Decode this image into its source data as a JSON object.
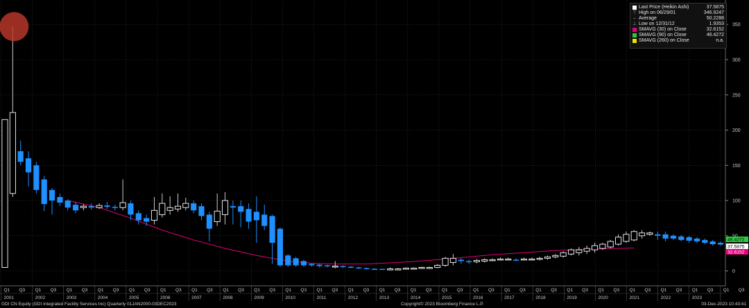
{
  "legend": {
    "items": [
      {
        "label": "Last Price (Heikin Ashi)",
        "value": "37.5875",
        "color": "#ffffff",
        "type": "box"
      },
      {
        "label": "High on 06/29/01",
        "value": "346.9247",
        "color": "#aaaaaa",
        "type": "high"
      },
      {
        "label": "Average",
        "value": "50.2288",
        "color": "#aaaaaa",
        "type": "avg"
      },
      {
        "label": "Low on 12/31/12",
        "value": "1.9353",
        "color": "#aaaaaa",
        "type": "low"
      },
      {
        "label": "SMAVG (30)  on Close",
        "value": "32.6152",
        "color": "#e4007c",
        "type": "box"
      },
      {
        "label": "SMAVG (90)  on Close",
        "value": "46.4272",
        "color": "#2ecc40",
        "type": "box"
      },
      {
        "label": "SMAVG (260)  on Close",
        "value": "n.a.",
        "color": "#f0e000",
        "type": "box"
      }
    ]
  },
  "footer": {
    "left": "GDI CN Equity (GDI Integrated Facility Services Inc)  Quarterly 01JAN2000-03DEC2023",
    "center": "Copyright© 2023 Bloomberg Finance L.P.",
    "right": "03-Dec-2023 10:43:41"
  },
  "price_tags": [
    {
      "label": "46.4272",
      "bg": "#2ecc40",
      "color": "#000000",
      "value": 46.4272
    },
    {
      "label": "37.5875",
      "bg": "#ffffff",
      "color": "#000000",
      "value": 37.5875
    },
    {
      "label": "32.6152",
      "bg": "#e4007c",
      "color": "#ffffff",
      "value": 32.6152
    }
  ],
  "chart_data": {
    "type": "candlestick",
    "title": "",
    "ylim": [
      -25,
      365
    ],
    "yticks": [
      0,
      50,
      100,
      150,
      200,
      250,
      300,
      350
    ],
    "x_quarters": [
      "Q1",
      "Q3"
    ],
    "x_years": [
      "2001",
      "2002",
      "2003",
      "2004",
      "2005",
      "2006",
      "2007",
      "2008",
      "2009",
      "2010",
      "2011",
      "2012",
      "2013",
      "2014",
      "2015",
      "2016",
      "2017",
      "2018",
      "2019",
      "2020",
      "2021",
      "2022",
      "2023"
    ],
    "high_marker": {
      "label": "High on 06/29/01",
      "value": 346.9247,
      "candle_index": 1,
      "color": "#c0392b"
    },
    "candles": [
      {
        "open": 5,
        "close": 215,
        "high": 215,
        "low": 5,
        "dir": "up"
      },
      {
        "open": 110,
        "close": 225,
        "high": 347,
        "low": 105,
        "dir": "up"
      },
      {
        "open": 170,
        "close": 155,
        "high": 185,
        "low": 150,
        "dir": "down"
      },
      {
        "open": 160,
        "close": 140,
        "high": 170,
        "low": 120,
        "dir": "down"
      },
      {
        "open": 150,
        "close": 115,
        "high": 155,
        "low": 110,
        "dir": "down"
      },
      {
        "open": 130,
        "close": 95,
        "high": 135,
        "low": 85,
        "dir": "down"
      },
      {
        "open": 115,
        "close": 100,
        "high": 118,
        "low": 80,
        "dir": "down"
      },
      {
        "open": 105,
        "close": 97,
        "high": 110,
        "low": 92,
        "dir": "down"
      },
      {
        "open": 100,
        "close": 90,
        "high": 102,
        "low": 86,
        "dir": "down"
      },
      {
        "open": 94,
        "close": 86,
        "high": 98,
        "low": 82,
        "dir": "down"
      },
      {
        "open": 90,
        "close": 92,
        "high": 95,
        "low": 86,
        "dir": "up"
      },
      {
        "open": 92,
        "close": 90,
        "high": 96,
        "low": 87,
        "dir": "down"
      },
      {
        "open": 90,
        "close": 93,
        "high": 96,
        "low": 88,
        "dir": "up"
      },
      {
        "open": 93,
        "close": 91,
        "high": 98,
        "low": 88,
        "dir": "down"
      },
      {
        "open": 91,
        "close": 90,
        "high": 94,
        "low": 86,
        "dir": "down"
      },
      {
        "open": 90,
        "close": 97,
        "high": 130,
        "low": 86,
        "dir": "up"
      },
      {
        "open": 96,
        "close": 80,
        "high": 100,
        "low": 72,
        "dir": "down"
      },
      {
        "open": 82,
        "close": 72,
        "high": 86,
        "low": 66,
        "dir": "down"
      },
      {
        "open": 75,
        "close": 70,
        "high": 80,
        "low": 64,
        "dir": "down"
      },
      {
        "open": 72,
        "close": 86,
        "high": 105,
        "low": 66,
        "dir": "up"
      },
      {
        "open": 80,
        "close": 96,
        "high": 110,
        "low": 76,
        "dir": "up"
      },
      {
        "open": 86,
        "close": 90,
        "high": 106,
        "low": 80,
        "dir": "up"
      },
      {
        "open": 88,
        "close": 92,
        "high": 110,
        "low": 84,
        "dir": "up"
      },
      {
        "open": 90,
        "close": 96,
        "high": 104,
        "low": 86,
        "dir": "up"
      },
      {
        "open": 96,
        "close": 86,
        "high": 100,
        "low": 82,
        "dir": "down"
      },
      {
        "open": 92,
        "close": 78,
        "high": 96,
        "low": 72,
        "dir": "down"
      },
      {
        "open": 80,
        "close": 60,
        "high": 84,
        "low": 42,
        "dir": "down"
      },
      {
        "open": 70,
        "close": 85,
        "high": 110,
        "low": 64,
        "dir": "up"
      },
      {
        "open": 80,
        "close": 100,
        "high": 112,
        "low": 66,
        "dir": "up"
      },
      {
        "open": 92,
        "close": 90,
        "high": 100,
        "low": 66,
        "dir": "down"
      },
      {
        "open": 92,
        "close": 84,
        "high": 100,
        "low": 62,
        "dir": "down"
      },
      {
        "open": 88,
        "close": 70,
        "high": 96,
        "low": 60,
        "dir": "down"
      },
      {
        "open": 84,
        "close": 72,
        "high": 106,
        "low": 40,
        "dir": "down"
      },
      {
        "open": 80,
        "close": 64,
        "high": 94,
        "low": 58,
        "dir": "down"
      },
      {
        "open": 78,
        "close": 40,
        "high": 80,
        "low": 10,
        "dir": "down"
      },
      {
        "open": 60,
        "close": 8,
        "high": 62,
        "low": 6,
        "dir": "down"
      },
      {
        "open": 22,
        "close": 8,
        "high": 24,
        "low": 6,
        "dir": "down"
      },
      {
        "open": 18,
        "close": 8,
        "high": 20,
        "low": 6,
        "dir": "down"
      },
      {
        "open": 14,
        "close": 8,
        "high": 16,
        "low": 6,
        "dir": "down"
      },
      {
        "open": 10,
        "close": 8,
        "high": 11,
        "low": 6,
        "dir": "down"
      },
      {
        "open": 9,
        "close": 7,
        "high": 10,
        "low": 5,
        "dir": "down"
      },
      {
        "open": 8,
        "close": 7,
        "high": 9,
        "low": 5,
        "dir": "down"
      },
      {
        "open": 6,
        "close": 7,
        "high": 14,
        "low": 4,
        "dir": "up"
      },
      {
        "open": 7,
        "close": 6,
        "high": 8,
        "low": 4,
        "dir": "down"
      },
      {
        "open": 6,
        "close": 5,
        "high": 7,
        "low": 4,
        "dir": "down"
      },
      {
        "open": 5,
        "close": 4,
        "high": 6,
        "low": 3,
        "dir": "down"
      },
      {
        "open": 4,
        "close": 3,
        "high": 5,
        "low": 2,
        "dir": "down"
      },
      {
        "open": 3,
        "close": 3,
        "high": 4,
        "low": 2,
        "dir": "down"
      },
      {
        "open": 3,
        "close": 2,
        "high": 3,
        "low": 1.9,
        "dir": "down"
      },
      {
        "open": 2,
        "close": 3,
        "high": 5,
        "low": 2,
        "dir": "up"
      },
      {
        "open": 3,
        "close": 3,
        "high": 4,
        "low": 2,
        "dir": "up"
      },
      {
        "open": 3,
        "close": 4,
        "high": 5,
        "low": 2,
        "dir": "up"
      },
      {
        "open": 4,
        "close": 4,
        "high": 5,
        "low": 3,
        "dir": "up"
      },
      {
        "open": 4,
        "close": 5,
        "high": 6,
        "low": 3,
        "dir": "up"
      },
      {
        "open": 4,
        "close": 5,
        "high": 6,
        "low": 3,
        "dir": "up"
      },
      {
        "open": 5,
        "close": 8,
        "high": 10,
        "low": 4,
        "dir": "up"
      },
      {
        "open": 8,
        "close": 18,
        "high": 20,
        "low": 6,
        "dir": "up"
      },
      {
        "open": 12,
        "close": 18,
        "high": 24,
        "low": 8,
        "dir": "up"
      },
      {
        "open": 16,
        "close": 14,
        "high": 18,
        "low": 10,
        "dir": "down"
      },
      {
        "open": 14,
        "close": 13,
        "high": 16,
        "low": 10,
        "dir": "down"
      },
      {
        "open": 13,
        "close": 15,
        "high": 17,
        "low": 11,
        "dir": "up"
      },
      {
        "open": 14,
        "close": 16,
        "high": 18,
        "low": 12,
        "dir": "up"
      },
      {
        "open": 16,
        "close": 16,
        "high": 18,
        "low": 14,
        "dir": "up"
      },
      {
        "open": 16,
        "close": 17,
        "high": 19,
        "low": 15,
        "dir": "up"
      },
      {
        "open": 17,
        "close": 17,
        "high": 19,
        "low": 15,
        "dir": "up"
      },
      {
        "open": 16,
        "close": 16,
        "high": 18,
        "low": 14,
        "dir": "down"
      },
      {
        "open": 16,
        "close": 17,
        "high": 19,
        "low": 15,
        "dir": "up"
      },
      {
        "open": 16,
        "close": 17,
        "high": 19,
        "low": 15,
        "dir": "up"
      },
      {
        "open": 17,
        "close": 18,
        "high": 20,
        "low": 15,
        "dir": "up"
      },
      {
        "open": 18,
        "close": 20,
        "high": 22,
        "low": 16,
        "dir": "up"
      },
      {
        "open": 20,
        "close": 22,
        "high": 24,
        "low": 18,
        "dir": "up"
      },
      {
        "open": 21,
        "close": 26,
        "high": 28,
        "low": 19,
        "dir": "up"
      },
      {
        "open": 24,
        "close": 30,
        "high": 32,
        "low": 22,
        "dir": "up"
      },
      {
        "open": 26,
        "close": 30,
        "high": 34,
        "low": 22,
        "dir": "up"
      },
      {
        "open": 28,
        "close": 32,
        "high": 36,
        "low": 24,
        "dir": "up"
      },
      {
        "open": 30,
        "close": 36,
        "high": 40,
        "low": 26,
        "dir": "up"
      },
      {
        "open": 32,
        "close": 38,
        "high": 40,
        "low": 30,
        "dir": "up"
      },
      {
        "open": 34,
        "close": 42,
        "high": 44,
        "low": 32,
        "dir": "up"
      },
      {
        "open": 38,
        "close": 48,
        "high": 52,
        "low": 36,
        "dir": "up"
      },
      {
        "open": 42,
        "close": 52,
        "high": 56,
        "low": 40,
        "dir": "up"
      },
      {
        "open": 44,
        "close": 56,
        "high": 58,
        "low": 42,
        "dir": "up"
      },
      {
        "open": 50,
        "close": 54,
        "high": 58,
        "low": 46,
        "dir": "up"
      },
      {
        "open": 52,
        "close": 54,
        "high": 56,
        "low": 50,
        "dir": "up"
      },
      {
        "open": 52,
        "close": 50,
        "high": 56,
        "low": 44,
        "dir": "down"
      },
      {
        "open": 52,
        "close": 46,
        "high": 56,
        "low": 42,
        "dir": "down"
      },
      {
        "open": 50,
        "close": 46,
        "high": 52,
        "low": 44,
        "dir": "down"
      },
      {
        "open": 49,
        "close": 44,
        "high": 51,
        "low": 42,
        "dir": "down"
      },
      {
        "open": 48,
        "close": 43,
        "high": 50,
        "low": 40,
        "dir": "down"
      },
      {
        "open": 46,
        "close": 42,
        "high": 48,
        "low": 40,
        "dir": "down"
      },
      {
        "open": 44,
        "close": 40,
        "high": 46,
        "low": 38,
        "dir": "down"
      },
      {
        "open": 42,
        "close": 38,
        "high": 44,
        "low": 36,
        "dir": "down"
      },
      {
        "open": 40,
        "close": 37.5875,
        "high": 42,
        "low": 36,
        "dir": "down"
      }
    ],
    "sma30": [
      [
        8,
        100
      ],
      [
        12,
        90
      ],
      [
        16,
        75
      ],
      [
        20,
        58
      ],
      [
        24,
        44
      ],
      [
        28,
        32
      ],
      [
        32,
        22
      ],
      [
        36,
        14
      ],
      [
        39,
        11
      ],
      [
        42,
        10
      ],
      [
        46,
        10
      ],
      [
        50,
        12
      ],
      [
        54,
        15
      ],
      [
        58,
        19
      ],
      [
        62,
        23
      ],
      [
        66,
        26
      ],
      [
        70,
        29
      ],
      [
        74,
        31
      ],
      [
        78,
        32
      ],
      [
        80,
        32.6152
      ]
    ]
  }
}
